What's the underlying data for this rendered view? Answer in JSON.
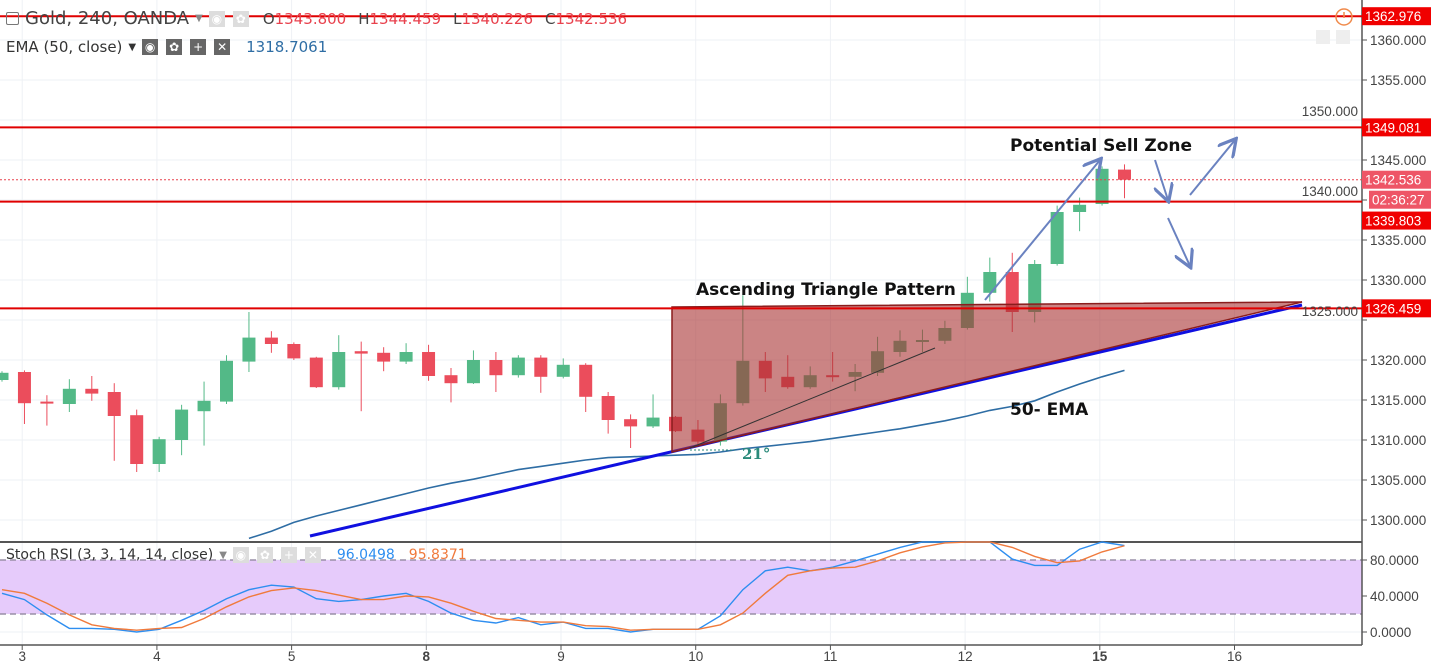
{
  "header": {
    "symbol": "Gold, 240, OANDA",
    "open_label": "O",
    "open": "1343.800",
    "high_label": "H",
    "high": "1344.459",
    "low_label": "L",
    "low": "1340.226",
    "close_label": "C",
    "close": "1342.536"
  },
  "ema_legend": {
    "label": "EMA (50, close)",
    "value": "1318.7061"
  },
  "stoch_legend": {
    "label": "Stoch RSI (3, 3, 14, 14, close)",
    "k_value": "96.0498",
    "d_value": "95.8371"
  },
  "annotations": {
    "sell_zone": "Potential Sell Zone",
    "triangle": "Ascending Triangle Pattern",
    "ema": "50- EMA",
    "angle": "21°"
  },
  "price_labels": {
    "line1": "1362.976",
    "line2": "1349.081",
    "current": "1342.536",
    "countdown": "02:36:27",
    "line3": "1339.803",
    "line4": "1326.459"
  },
  "colors": {
    "up": "#53b987",
    "down": "#eb4d5c",
    "level_line": "#e00000",
    "trendline": "#1010e0",
    "ema": "#2e6da4",
    "stoch_k": "#2e8ef0",
    "stoch_d": "#f07a3c",
    "stoch_band": "#e6cbfb",
    "triangle": "#a83232",
    "arrows": "#6a82c0"
  },
  "chart_data": [
    {
      "type": "candlestick",
      "title": "Gold, 240, OANDA",
      "x_tick_labels": [
        "3",
        "4",
        "5",
        "8",
        "9",
        "10",
        "11",
        "12",
        "15",
        "16"
      ],
      "y_ticks": [
        "1360.000",
        "1355.000",
        "1350.000",
        "1345.000",
        "1340.000",
        "1335.000",
        "1330.000",
        "1325.000",
        "1320.000",
        "1315.000",
        "1310.000",
        "1305.000",
        "1300.000"
      ],
      "ylim": [
        1297,
        1365
      ],
      "ohlc": [
        [
          1317.5,
          1318.6,
          1317.3,
          1318.4
        ],
        [
          1318.5,
          1318.7,
          1312.0,
          1314.6
        ],
        [
          1314.8,
          1315.6,
          1311.8,
          1314.6
        ],
        [
          1314.5,
          1317.6,
          1313.5,
          1316.4
        ],
        [
          1316.4,
          1318.0,
          1314.9,
          1315.8
        ],
        [
          1316.0,
          1317.1,
          1307.4,
          1313.0
        ],
        [
          1313.1,
          1313.8,
          1306.0,
          1307.0
        ],
        [
          1307.0,
          1310.4,
          1306.0,
          1310.1
        ],
        [
          1310.0,
          1314.4,
          1308.1,
          1313.8
        ],
        [
          1313.6,
          1317.3,
          1309.3,
          1314.9
        ],
        [
          1314.8,
          1320.6,
          1314.5,
          1319.9
        ],
        [
          1319.8,
          1326.0,
          1318.5,
          1322.8
        ],
        [
          1322.8,
          1323.6,
          1320.9,
          1322.0
        ],
        [
          1322.0,
          1322.2,
          1320.0,
          1320.2
        ],
        [
          1320.3,
          1320.4,
          1316.5,
          1316.6
        ],
        [
          1316.6,
          1323.1,
          1316.3,
          1321.0
        ],
        [
          1321.1,
          1322.3,
          1313.6,
          1320.8
        ],
        [
          1320.9,
          1321.6,
          1318.6,
          1319.8
        ],
        [
          1319.8,
          1322.1,
          1319.5,
          1321.0
        ],
        [
          1321.0,
          1321.9,
          1317.4,
          1318.0
        ],
        [
          1318.1,
          1319.0,
          1314.7,
          1317.1
        ],
        [
          1317.1,
          1321.2,
          1317.0,
          1320.0
        ],
        [
          1320.0,
          1321.0,
          1316.0,
          1318.1
        ],
        [
          1318.1,
          1320.6,
          1317.8,
          1320.3
        ],
        [
          1320.3,
          1320.6,
          1315.9,
          1317.9
        ],
        [
          1317.9,
          1320.2,
          1317.7,
          1319.4
        ],
        [
          1319.4,
          1319.6,
          1313.5,
          1315.4
        ],
        [
          1315.5,
          1316.0,
          1310.8,
          1312.5
        ],
        [
          1312.6,
          1313.2,
          1309.0,
          1311.7
        ],
        [
          1311.7,
          1315.7,
          1311.5,
          1312.8
        ],
        [
          1312.9,
          1313.0,
          1311.0,
          1311.1
        ],
        [
          1311.3,
          1312.5,
          1309.5,
          1309.8
        ],
        [
          1309.8,
          1315.7,
          1309.3,
          1314.6
        ],
        [
          1314.6,
          1328.1,
          1314.3,
          1319.9
        ],
        [
          1319.9,
          1321.0,
          1316.0,
          1317.7
        ],
        [
          1317.9,
          1320.6,
          1316.4,
          1316.6
        ],
        [
          1316.6,
          1319.2,
          1316.4,
          1318.1
        ],
        [
          1318.1,
          1321.0,
          1317.3,
          1317.9
        ],
        [
          1317.9,
          1319.5,
          1316.1,
          1318.5
        ],
        [
          1318.4,
          1322.9,
          1318.0,
          1321.1
        ],
        [
          1321.0,
          1323.7,
          1320.4,
          1322.4
        ],
        [
          1322.3,
          1323.8,
          1321.0,
          1322.5
        ],
        [
          1322.4,
          1324.9,
          1322.0,
          1324.0
        ],
        [
          1324.0,
          1330.4,
          1323.8,
          1328.4
        ],
        [
          1328.4,
          1332.8,
          1327.3,
          1331.0
        ],
        [
          1331.0,
          1333.4,
          1323.5,
          1326.0
        ],
        [
          1326.0,
          1332.5,
          1324.7,
          1332.0
        ],
        [
          1332.0,
          1339.3,
          1331.8,
          1338.5
        ],
        [
          1338.5,
          1340.3,
          1336.1,
          1339.4
        ],
        [
          1339.5,
          1344.2,
          1339.3,
          1343.9
        ],
        [
          1343.8,
          1344.459,
          1340.226,
          1342.536
        ]
      ],
      "ema50": [
        null,
        null,
        null,
        null,
        null,
        null,
        null,
        null,
        null,
        null,
        null,
        1297.7,
        1298.6,
        1299.7,
        1300.5,
        1301.2,
        1301.9,
        1302.6,
        1303.3,
        1304.0,
        1304.6,
        1305.1,
        1305.7,
        1306.3,
        1306.7,
        1307.1,
        1307.5,
        1307.8,
        1307.9,
        1308.0,
        1308.1,
        1308.2,
        1308.5,
        1308.9,
        1309.2,
        1309.5,
        1309.8,
        1310.2,
        1310.6,
        1311.0,
        1311.4,
        1311.9,
        1312.4,
        1313.0,
        1313.7,
        1314.2,
        1314.9,
        1316.0,
        1317.0,
        1317.9,
        1318.7061
      ],
      "horizontal_levels": [
        1362.976,
        1349.081,
        1339.803,
        1326.459
      ],
      "current_price": 1342.536
    },
    {
      "type": "line",
      "title": "Stoch RSI (3, 3, 14, 14, close)",
      "y_ticks": [
        "80.0000",
        "40.0000",
        "0.0000"
      ],
      "ylim": [
        0,
        100
      ],
      "bands": [
        20,
        80
      ],
      "series": [
        {
          "name": "K",
          "values": [
            43,
            36,
            19,
            4,
            4,
            3,
            0,
            3,
            13,
            24,
            37,
            47,
            52,
            50,
            37,
            34,
            36,
            40,
            43,
            34,
            21,
            13,
            10,
            16,
            8,
            11,
            4,
            4,
            0,
            3,
            3,
            3,
            18,
            47,
            68,
            72,
            68,
            72,
            79,
            86.5,
            94,
            100,
            100,
            100,
            100,
            81,
            74,
            74,
            92,
            100,
            96.0498
          ]
        },
        {
          "name": "D",
          "values": [
            47,
            43,
            32,
            19,
            8,
            4,
            2,
            4,
            5,
            15,
            28,
            39,
            46,
            49,
            46,
            41,
            36,
            36,
            40,
            39,
            32,
            23,
            15,
            13,
            11,
            11,
            7,
            6,
            2,
            3,
            3,
            3,
            8,
            21,
            43,
            63,
            68,
            71,
            72,
            79,
            88,
            94.5,
            99,
            100,
            100,
            94,
            84,
            77,
            79,
            89,
            95.8371
          ]
        }
      ]
    }
  ]
}
